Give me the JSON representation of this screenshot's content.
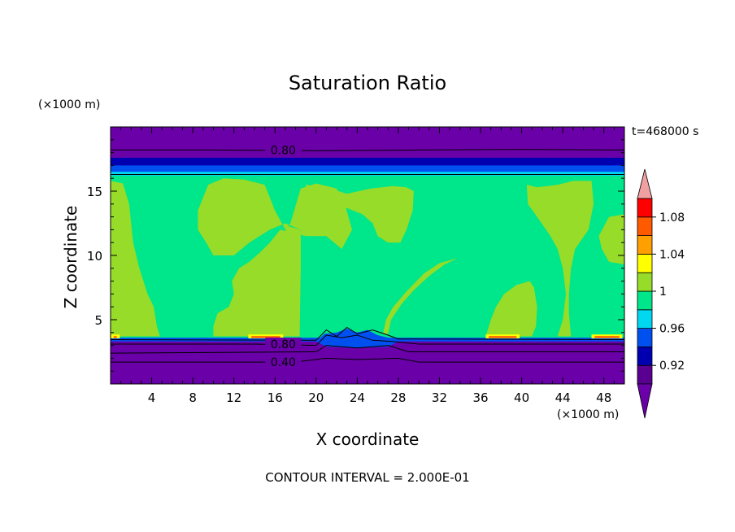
{
  "chart_data": {
    "type": "heatmap",
    "title": "Saturation Ratio",
    "xlabel": "X coordinate",
    "ylabel": "Z coordinate",
    "x_unit": "(×1000 m)",
    "y_unit": "(×1000 m)",
    "time_label": "t=468000 s",
    "footer": "CONTOUR INTERVAL = 2.000E-01",
    "xlim": [
      0,
      50
    ],
    "ylim": [
      0,
      20
    ],
    "x_ticks": [
      "4",
      "8",
      "12",
      "16",
      "20",
      "24",
      "28",
      "32",
      "36",
      "40",
      "44",
      "48"
    ],
    "y_ticks": [
      "5",
      "10",
      "15"
    ],
    "colorbar": {
      "ticks": [
        "1.08",
        "1.04",
        "1",
        "0.96",
        "0.92"
      ],
      "levels": [
        {
          "range": "<0.9",
          "color": "#6a00a8"
        },
        {
          "range": "0.90-0.92",
          "color": "#5a0090"
        },
        {
          "range": "0.92-0.94",
          "color": "#0000b0"
        },
        {
          "range": "0.94-0.96",
          "color": "#0050f0"
        },
        {
          "range": "0.96-0.98",
          "color": "#00d8f0"
        },
        {
          "range": "0.98-1.00",
          "color": "#00e68a"
        },
        {
          "range": "1.00-1.02",
          "color": "#96dc28"
        },
        {
          "range": "1.02-1.04",
          "color": "#ffff00"
        },
        {
          "range": "1.04-1.06",
          "color": "#ffa000"
        },
        {
          "range": "1.06-1.08",
          "color": "#ff5a00"
        },
        {
          "range": "1.08-1.10",
          "color": "#ff0000"
        },
        {
          "range": ">1.10",
          "color": "#f0a0a0"
        }
      ]
    },
    "contour_labels": [
      "0.80",
      "0.80",
      "0.40"
    ],
    "contour_levels": [
      {
        "label": "0.80",
        "z": 18.2
      },
      {
        "label": "0.80",
        "z": 3.1
      },
      {
        "label": "0.40",
        "z": 1.7
      }
    ]
  }
}
